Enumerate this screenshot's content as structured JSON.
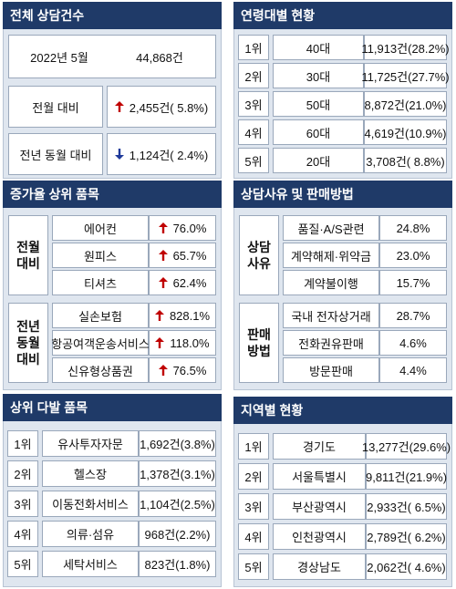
{
  "total": {
    "title": "전체 상담건수",
    "rows": [
      {
        "label": "2022년 5월",
        "value": "44,868건"
      },
      {
        "label": "전월 대비",
        "trend": "up",
        "value": "2,455건( 5.8%)"
      },
      {
        "label": "전년 동월 대비",
        "trend": "down",
        "value": "1,124건( 2.4%)"
      }
    ]
  },
  "increase": {
    "title": "증가율 상위 품목",
    "groups": [
      {
        "label_lines": [
          "전월",
          "대비"
        ],
        "items": [
          [
            "에어컨",
            "76.0%"
          ],
          [
            "원피스",
            "65.7%"
          ],
          [
            "티셔츠",
            "62.4%"
          ]
        ]
      },
      {
        "label_lines": [
          "전년",
          "동월",
          "대비"
        ],
        "items": [
          [
            "실손보험",
            "828.1%"
          ],
          [
            "항공여객운송서비스",
            "118.0%"
          ],
          [
            "신유형상품권",
            "76.5%"
          ]
        ]
      }
    ]
  },
  "top_items": {
    "title": "상위 다발 품목",
    "rows": [
      [
        "1위",
        "유사투자자문",
        "1,692건(3.8%)"
      ],
      [
        "2위",
        "헬스장",
        "1,378건(3.1%)"
      ],
      [
        "3위",
        "이동전화서비스",
        "1,104건(2.5%)"
      ],
      [
        "4위",
        "의류·섬유",
        "968건(2.2%)"
      ],
      [
        "5위",
        "세탁서비스",
        "823건(1.8%)"
      ]
    ]
  },
  "age": {
    "title": "연령대별 현황",
    "rows": [
      [
        "1위",
        "40대",
        "11,913건(28.2%)"
      ],
      [
        "2위",
        "30대",
        "11,725건(27.7%)"
      ],
      [
        "3위",
        "50대",
        "8,872건(21.0%)"
      ],
      [
        "4위",
        "60대",
        "4,619건(10.9%)"
      ],
      [
        "5위",
        "20대",
        "3,708건( 8.8%)"
      ]
    ]
  },
  "reasons": {
    "title": "상담사유 및 판매방법",
    "groups": [
      {
        "label_lines": [
          "상담",
          "사유"
        ],
        "items": [
          [
            "품질·A/S관련",
            "24.8%"
          ],
          [
            "계약해제·위약금",
            "23.0%"
          ],
          [
            "계약불이행",
            "15.7%"
          ]
        ]
      },
      {
        "label_lines": [
          "판매",
          "방법"
        ],
        "items": [
          [
            "국내 전자상거래",
            "28.7%"
          ],
          [
            "전화권유판매",
            "4.6%"
          ],
          [
            "방문판매",
            "4.4%"
          ]
        ]
      }
    ]
  },
  "regions": {
    "title": "지역별 현황",
    "rows": [
      [
        "1위",
        "경기도",
        "13,277건(29.6%)"
      ],
      [
        "2위",
        "서울특별시",
        "9,811건(21.9%)"
      ],
      [
        "3위",
        "부산광역시",
        "2,933건( 6.5%)"
      ],
      [
        "4위",
        "인천광역시",
        "2,789건( 6.2%)"
      ],
      [
        "5위",
        "경상남도",
        "2,062건( 4.6%)"
      ]
    ]
  }
}
